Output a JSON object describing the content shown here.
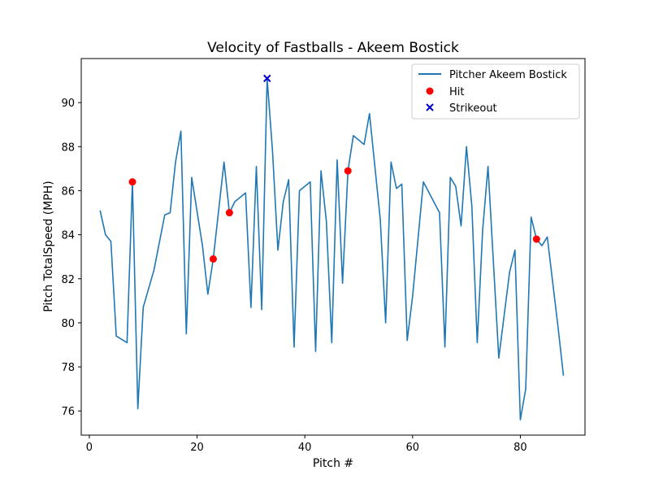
{
  "chart_data": {
    "type": "line",
    "title": "Velocity of Fastballs - Akeem Bostick",
    "xlabel": "Pitch #",
    "ylabel": "Pitch TotalSpeed (MPH)",
    "xlim": [
      -1.5,
      92
    ],
    "ylim": [
      74.9,
      92.0
    ],
    "xticks": [
      0,
      20,
      40,
      60,
      80
    ],
    "yticks": [
      76,
      78,
      80,
      82,
      84,
      86,
      88,
      90
    ],
    "legend_position": "top-right",
    "grid": false,
    "series": [
      {
        "name": "Pitcher Akeem Bostick",
        "color": "#1f77b4",
        "points": [
          [
            2,
            85.1
          ],
          [
            3,
            84.0
          ],
          [
            4,
            83.7
          ],
          [
            5,
            79.4
          ],
          [
            7,
            79.1
          ],
          [
            8,
            86.4
          ],
          [
            9,
            76.1
          ],
          [
            10,
            80.7
          ],
          [
            12,
            82.4
          ],
          [
            14,
            84.9
          ],
          [
            15,
            85.0
          ],
          [
            16,
            87.3
          ],
          [
            17,
            88.7
          ],
          [
            18,
            79.5
          ],
          [
            19,
            86.6
          ],
          [
            21,
            83.5
          ],
          [
            22,
            81.3
          ],
          [
            23,
            82.9
          ],
          [
            25,
            87.3
          ],
          [
            26,
            85.0
          ],
          [
            27,
            85.5
          ],
          [
            29,
            85.9
          ],
          [
            30,
            80.7
          ],
          [
            31,
            87.1
          ],
          [
            32,
            80.6
          ],
          [
            33,
            91.1
          ],
          [
            34,
            87.8
          ],
          [
            35,
            83.3
          ],
          [
            36,
            85.5
          ],
          [
            37,
            86.5
          ],
          [
            38,
            78.9
          ],
          [
            39,
            86.0
          ],
          [
            41,
            86.4
          ],
          [
            42,
            78.7
          ],
          [
            43,
            86.9
          ],
          [
            44,
            84.6
          ],
          [
            45,
            79.1
          ],
          [
            46,
            87.4
          ],
          [
            47,
            81.8
          ],
          [
            48,
            86.9
          ],
          [
            49,
            88.5
          ],
          [
            51,
            88.1
          ],
          [
            52,
            89.5
          ],
          [
            54,
            84.7
          ],
          [
            55,
            80.0
          ],
          [
            56,
            87.3
          ],
          [
            57,
            86.1
          ],
          [
            58,
            86.3
          ],
          [
            59,
            79.2
          ],
          [
            60,
            81.2
          ],
          [
            62,
            86.4
          ],
          [
            65,
            85.0
          ],
          [
            66,
            78.9
          ],
          [
            67,
            86.6
          ],
          [
            68,
            86.2
          ],
          [
            69,
            84.4
          ],
          [
            70,
            88.0
          ],
          [
            71,
            85.3
          ],
          [
            72,
            79.1
          ],
          [
            73,
            84.2
          ],
          [
            74,
            87.1
          ],
          [
            76,
            78.4
          ],
          [
            78,
            82.3
          ],
          [
            79,
            83.3
          ],
          [
            80,
            75.6
          ],
          [
            81,
            77.0
          ],
          [
            82,
            84.8
          ],
          [
            83,
            83.8
          ],
          [
            84,
            83.5
          ],
          [
            85,
            83.9
          ],
          [
            87,
            79.8
          ],
          [
            88,
            77.6
          ]
        ]
      },
      {
        "name": "Hit",
        "color": "#ff0000",
        "marker": "circle",
        "points": [
          [
            8,
            86.4
          ],
          [
            23,
            82.9
          ],
          [
            26,
            85.0
          ],
          [
            48,
            86.9
          ],
          [
            83,
            83.8
          ]
        ]
      },
      {
        "name": "Strikeout",
        "color": "#0000cc",
        "marker": "x",
        "points": [
          [
            33,
            91.1
          ]
        ]
      }
    ]
  }
}
